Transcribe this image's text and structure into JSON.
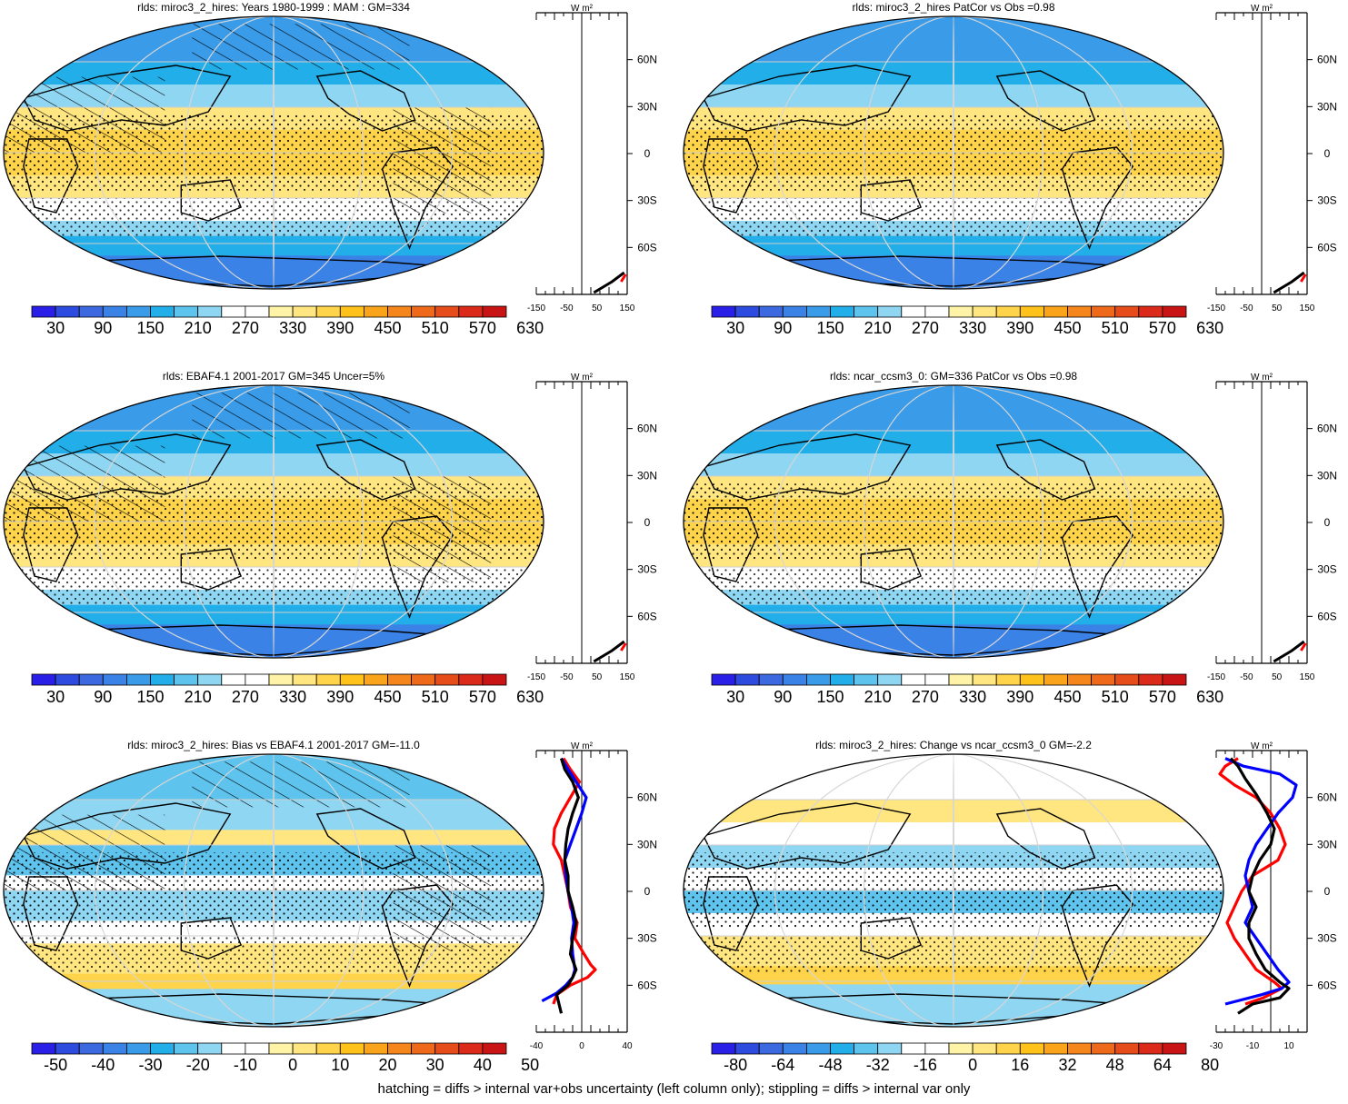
{
  "footnote": "hatching = diffs > internal var+obs uncertainty (left column only); stippling = diffs > internal var only",
  "unit_label": "W m²",
  "lat_labels": [
    "60N",
    "30N",
    "0",
    "30S",
    "60S"
  ],
  "colors": {
    "abs_palette": [
      "#2a1fe6",
      "#2e4be0",
      "#3c68e0",
      "#3b82e6",
      "#3a9be8",
      "#22aee8",
      "#5ec4ee",
      "#8fd6f2",
      "#ffffff",
      "#ffffff",
      "#fff3a8",
      "#ffe680",
      "#ffd44a",
      "#ffc21a",
      "#f9a41a",
      "#f5861c",
      "#ee6a1a",
      "#e64b1a",
      "#dc2a1a",
      "#c81414"
    ],
    "diff_palette": [
      "#2a1fe6",
      "#2e4be0",
      "#3c68e0",
      "#3b82e6",
      "#3a9be8",
      "#22aee8",
      "#5ec4ee",
      "#8fd6f2",
      "#ffffff",
      "#ffffff",
      "#fff3a8",
      "#ffe680",
      "#ffd44a",
      "#ffc21a",
      "#f9a41a",
      "#f5861c",
      "#ee6a1a",
      "#e64b1a",
      "#dc2a1a",
      "#c81414"
    ],
    "series_black": "#000000",
    "series_red": "#ff0000",
    "series_blue": "#0000ff"
  },
  "chart_data": [
    {
      "type": "heatmap",
      "title": "rlds: miroc3_2_hires: Years 1980-1999 : MAM : GM=334",
      "colorbar_labels": [
        "30",
        "90",
        "150",
        "210",
        "270",
        "330",
        "390",
        "450",
        "510",
        "570",
        "630"
      ],
      "zonal_profile": {
        "xlim": [
          -150,
          150
        ],
        "xticks": [
          "-150",
          "-50",
          "50",
          "150"
        ],
        "series": []
      }
    },
    {
      "type": "heatmap",
      "title": "rlds: miroc3_2_hires PatCor vs Obs =0.98",
      "colorbar_labels": [
        "30",
        "90",
        "150",
        "210",
        "270",
        "330",
        "390",
        "450",
        "510",
        "570",
        "630"
      ],
      "zonal_profile": {
        "xlim": [
          -150,
          150
        ],
        "xticks": [
          "-150",
          "-50",
          "50",
          "150"
        ],
        "series": []
      }
    },
    {
      "type": "heatmap",
      "title": "rlds: EBAF4.1 2001-2017 GM=345 Uncer=5%",
      "colorbar_labels": [
        "30",
        "90",
        "150",
        "210",
        "270",
        "330",
        "390",
        "450",
        "510",
        "570",
        "630"
      ],
      "zonal_profile": {
        "xlim": [
          -150,
          150
        ],
        "xticks": [
          "-150",
          "-50",
          "50",
          "150"
        ],
        "series": []
      }
    },
    {
      "type": "heatmap",
      "title": "rlds: ncar_ccsm3_0: GM=336 PatCor vs Obs =0.98",
      "colorbar_labels": [
        "30",
        "90",
        "150",
        "210",
        "270",
        "330",
        "390",
        "450",
        "510",
        "570",
        "630"
      ],
      "zonal_profile": {
        "xlim": [
          -150,
          150
        ],
        "xticks": [
          "-150",
          "-50",
          "50",
          "150"
        ],
        "series": []
      }
    },
    {
      "type": "heatmap",
      "title": "rlds: miroc3_2_hires: Bias vs EBAF4.1 2001-2017 GM=-11.0",
      "colorbar_labels": [
        "-50",
        "-40",
        "-30",
        "-20",
        "-10",
        "0",
        "10",
        "20",
        "30",
        "40",
        "50"
      ],
      "zonal_profile": {
        "xlim": [
          -40,
          40
        ],
        "xticks": [
          "-40",
          "0",
          "40"
        ],
        "series": [
          {
            "color": "black",
            "values": [
              [
                -18,
                85
              ],
              [
                -15,
                78
              ],
              [
                -8,
                70
              ],
              [
                -3,
                60
              ],
              [
                -8,
                50
              ],
              [
                -12,
                40
              ],
              [
                -14,
                30
              ],
              [
                -15,
                20
              ],
              [
                -12,
                10
              ],
              [
                -12,
                0
              ],
              [
                -8,
                -10
              ],
              [
                -5,
                -20
              ],
              [
                -8,
                -30
              ],
              [
                -10,
                -40
              ],
              [
                -5,
                -50
              ],
              [
                -8,
                -55
              ],
              [
                -12,
                -60
              ],
              [
                -22,
                -66
              ],
              [
                -20,
                -72
              ],
              [
                -18,
                -78
              ]
            ]
          },
          {
            "color": "red",
            "values": [
              [
                -16,
                85
              ],
              [
                -10,
                78
              ],
              [
                -2,
                70
              ],
              [
                -10,
                60
              ],
              [
                -18,
                50
              ],
              [
                -24,
                40
              ],
              [
                -25,
                30
              ],
              [
                -18,
                20
              ],
              [
                -15,
                10
              ],
              [
                -12,
                0
              ],
              [
                -10,
                -10
              ],
              [
                -4,
                -20
              ],
              [
                -6,
                -30
              ],
              [
                2,
                -40
              ],
              [
                8,
                -47
              ],
              [
                12,
                -50
              ],
              [
                5,
                -55
              ],
              [
                -10,
                -60
              ],
              [
                -22,
                -66
              ],
              [
                -25,
                -72
              ]
            ]
          },
          {
            "color": "blue",
            "values": [
              [
                -18,
                85
              ],
              [
                -12,
                78
              ],
              [
                -5,
                70
              ],
              [
                4,
                60
              ],
              [
                0,
                50
              ],
              [
                -5,
                40
              ],
              [
                -10,
                30
              ],
              [
                -15,
                20
              ],
              [
                -14,
                10
              ],
              [
                -12,
                0
              ],
              [
                -9,
                -10
              ],
              [
                -7,
                -20
              ],
              [
                -9,
                -30
              ],
              [
                -8,
                -40
              ],
              [
                -6,
                -50
              ],
              [
                -8,
                -55
              ],
              [
                -14,
                -60
              ],
              [
                -22,
                -65
              ],
              [
                -35,
                -70
              ]
            ]
          }
        ]
      }
    },
    {
      "type": "heatmap",
      "title": "rlds: miroc3_2_hires: Change vs ncar_ccsm3_0 GM=-2.2",
      "colorbar_labels": [
        "-80",
        "-64",
        "-48",
        "-32",
        "-16",
        "0",
        "16",
        "32",
        "48",
        "64",
        "80"
      ],
      "zonal_profile": {
        "xlim": [
          -30,
          20
        ],
        "xticks": [
          "-30",
          "-10",
          "10"
        ],
        "series": [
          {
            "color": "black",
            "values": [
              [
                -22,
                85
              ],
              [
                -18,
                80
              ],
              [
                -14,
                72
              ],
              [
                -8,
                62
              ],
              [
                -2,
                50
              ],
              [
                2,
                40
              ],
              [
                0,
                30
              ],
              [
                -6,
                20
              ],
              [
                -10,
                10
              ],
              [
                -12,
                0
              ],
              [
                -8,
                -10
              ],
              [
                -12,
                -20
              ],
              [
                -12,
                -30
              ],
              [
                -8,
                -40
              ],
              [
                -3,
                -50
              ],
              [
                5,
                -58
              ],
              [
                10,
                -62
              ],
              [
                5,
                -68
              ],
              [
                -10,
                -72
              ],
              [
                -18,
                -78
              ]
            ]
          },
          {
            "color": "red",
            "values": [
              [
                -18,
                85
              ],
              [
                -25,
                80
              ],
              [
                -28,
                75
              ],
              [
                -20,
                68
              ],
              [
                -8,
                60
              ],
              [
                0,
                50
              ],
              [
                5,
                40
              ],
              [
                8,
                30
              ],
              [
                4,
                20
              ],
              [
                -10,
                10
              ],
              [
                -16,
                0
              ],
              [
                -20,
                -10
              ],
              [
                -24,
                -20
              ],
              [
                -20,
                -30
              ],
              [
                -14,
                -40
              ],
              [
                -8,
                -50
              ],
              [
                2,
                -58
              ],
              [
                6,
                -62
              ],
              [
                -4,
                -68
              ],
              [
                -14,
                -72
              ]
            ]
          },
          {
            "color": "blue",
            "values": [
              [
                -25,
                85
              ],
              [
                -15,
                80
              ],
              [
                5,
                75
              ],
              [
                14,
                68
              ],
              [
                12,
                60
              ],
              [
                4,
                50
              ],
              [
                -2,
                40
              ],
              [
                -8,
                30
              ],
              [
                -12,
                20
              ],
              [
                -14,
                10
              ],
              [
                -12,
                0
              ],
              [
                -10,
                -10
              ],
              [
                -14,
                -20
              ],
              [
                -8,
                -30
              ],
              [
                -2,
                -40
              ],
              [
                4,
                -50
              ],
              [
                10,
                -58
              ],
              [
                6,
                -62
              ],
              [
                -5,
                -66
              ],
              [
                -25,
                -72
              ]
            ]
          }
        ]
      }
    }
  ]
}
